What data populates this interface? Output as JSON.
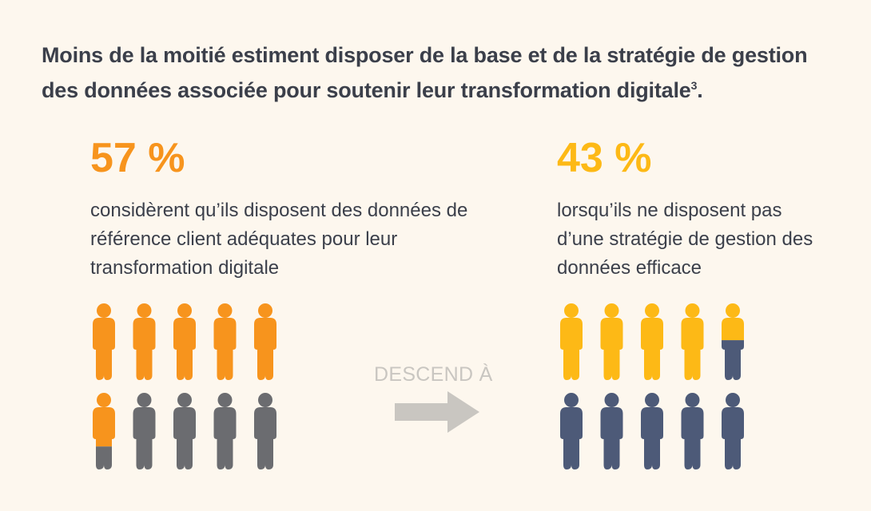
{
  "header": {
    "headline": "Moins de la moitié estiment disposer de la base et de la stratégie de gestion des données associée pour soutenir leur transformation digitale",
    "footnote": "3",
    "period": "."
  },
  "left_stat": {
    "value": "57 %",
    "description": "considèrent qu’ils disposent des données de référence client adéquates pour leur transformation digitale"
  },
  "right_stat": {
    "value": "43 %",
    "description": "lorsqu’ils ne disposent pas d’une stratégie de gestion des données efficace"
  },
  "transition": {
    "label": "DESCEND À",
    "icon": "right-arrow-icon"
  },
  "colors": {
    "left_accent": "#f7941d",
    "right_accent": "#fdb916",
    "left_rest": "#6b6c70",
    "right_rest": "#4d5a78",
    "arrow": "#c9c6c1"
  },
  "chart_data": {
    "type": "pictogram",
    "units_per_figure": 10,
    "figures_per_panel": 10,
    "panels": [
      {
        "value": 57,
        "label": "57 %",
        "filled_color": "#f7941d",
        "rest_color": "#6b6c70"
      },
      {
        "value": 43,
        "label": "43 %",
        "filled_color": "#fdb916",
        "rest_color": "#4d5a78"
      }
    ]
  }
}
